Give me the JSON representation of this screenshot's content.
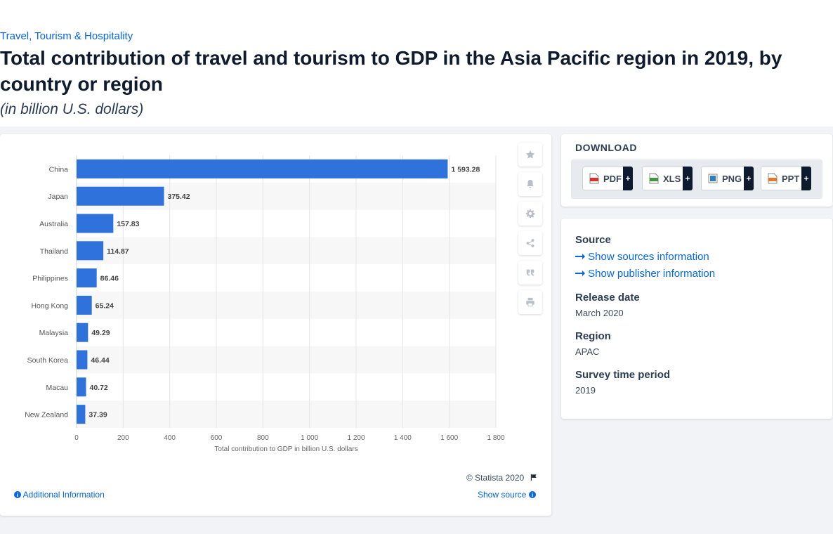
{
  "breadcrumb": "Travel, Tourism & Hospitality",
  "title": "Total contribution of travel and tourism to GDP in the Asia Pacific region in 2019, by country or region",
  "subtitle": "(in billion U.S. dollars)",
  "chart_data": {
    "type": "bar",
    "orientation": "horizontal",
    "categories": [
      "China",
      "Japan",
      "Australia",
      "Thailand",
      "Philippines",
      "Hong Kong",
      "Malaysia",
      "South Korea",
      "Macau",
      "New Zealand"
    ],
    "values": [
      1593.28,
      375.42,
      157.83,
      114.87,
      86.46,
      65.24,
      49.29,
      46.44,
      40.72,
      37.39
    ],
    "value_labels": [
      "1 593.28",
      "375.42",
      "157.83",
      "114.87",
      "86.46",
      "65.24",
      "49.29",
      "46.44",
      "40.72",
      "37.39"
    ],
    "xlabel": "Total contribution to GDP in billion U.S. dollars",
    "xlim": [
      0,
      1800
    ],
    "xticks": [
      0,
      200,
      400,
      600,
      800,
      1000,
      1200,
      1400,
      1600,
      1800
    ],
    "xtick_labels": [
      "0",
      "200",
      "400",
      "600",
      "800",
      "1 000",
      "1 200",
      "1 400",
      "1 600",
      "1 800"
    ],
    "bar_color": "#2f72dc",
    "grid": true
  },
  "chart_footer": {
    "copyright": "© Statista 2020",
    "additional_info": "Additional Information",
    "show_source": "Show source"
  },
  "side_actions": [
    "star-icon",
    "bell-icon",
    "gear-icon",
    "share-icon",
    "quote-icon",
    "print-icon"
  ],
  "download": {
    "title": "DOWNLOAD",
    "buttons": [
      {
        "label": "PDF",
        "plus": "+",
        "color": "#d9322b"
      },
      {
        "label": "XLS",
        "plus": "+",
        "color": "#3c9a3c"
      },
      {
        "label": "PNG",
        "plus": "+",
        "color": "#2e7fc1"
      },
      {
        "label": "PPT",
        "plus": "+",
        "color": "#e5772e"
      }
    ]
  },
  "info": {
    "source_heading": "Source",
    "show_sources": "Show sources information",
    "show_publisher": "Show publisher information",
    "release_heading": "Release date",
    "release_value": "March 2020",
    "region_heading": "Region",
    "region_value": "APAC",
    "survey_heading": "Survey time period",
    "survey_value": "2019"
  }
}
